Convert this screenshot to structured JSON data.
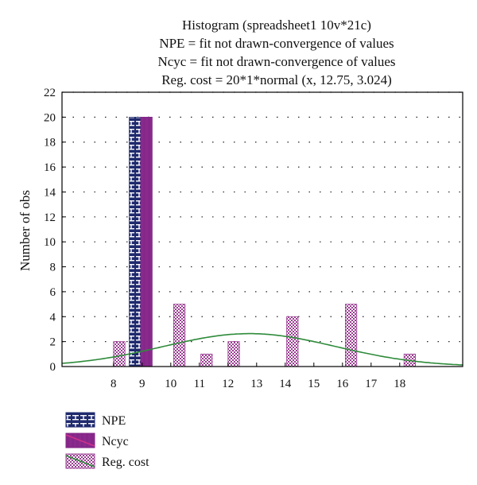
{
  "chart_data": {
    "type": "bar",
    "title_lines": [
      "Histogram (spreadsheet1 10v*21c)",
      "NPE = fit not drawn-convergence of values",
      "Ncyc = fit not drawn-convergence of values",
      "Reg. cost = 20*1*normal (x, 12.75, 3.024)"
    ],
    "ylabel": "Number of obs",
    "xlabel": "",
    "xlim": [
      6.2,
      20.2
    ],
    "ylim": [
      0,
      22
    ],
    "x_ticks": [
      8,
      9,
      10,
      11,
      12,
      13,
      14,
      15,
      16,
      17,
      18
    ],
    "y_ticks": [
      0,
      2,
      4,
      6,
      8,
      10,
      12,
      14,
      16,
      18,
      20,
      22
    ],
    "grid": "dotted horizontal",
    "series": [
      {
        "name": "NPE",
        "color": "#1f2a6e",
        "bars": [
          {
            "x": 8.75,
            "value": 20
          }
        ]
      },
      {
        "name": "Ncyc",
        "color": "#8b2a8e",
        "bars": [
          {
            "x": 9.15,
            "value": 20
          }
        ]
      },
      {
        "name": "Reg. cost",
        "color": "#9a3d92",
        "bars": [
          {
            "x": 8.2,
            "value": 2
          },
          {
            "x": 10.3,
            "value": 5
          },
          {
            "x": 11.25,
            "value": 1
          },
          {
            "x": 12.2,
            "value": 2
          },
          {
            "x": 14.25,
            "value": 4
          },
          {
            "x": 16.3,
            "value": 5
          },
          {
            "x": 18.35,
            "value": 1
          }
        ]
      }
    ],
    "fit_curve": {
      "series": "Reg. cost",
      "color": "#2e8b3a",
      "formula": "20*1*normal(x, 12.75, 3.024)",
      "mean": 12.75,
      "sd": 3.024,
      "scale": 20
    },
    "legend_position": "bottom-left"
  }
}
